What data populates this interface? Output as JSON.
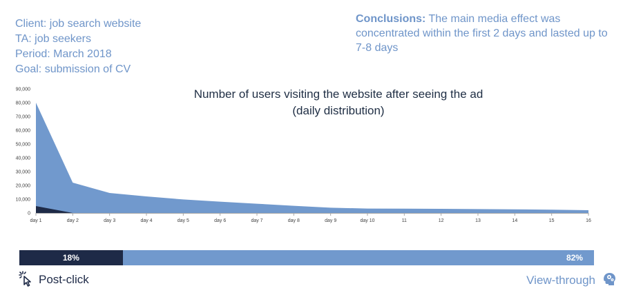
{
  "info": {
    "client": "Client: job search website",
    "ta": "TA: job seekers",
    "period": "Period: March 2018",
    "goal": "Goal: submission of CV"
  },
  "conclusions": {
    "label": "Conclusions:",
    "text": " The main media effect was concentrated within the first 2 days and lasted up to 7-8 days"
  },
  "colors": {
    "view_through": "#7199cd",
    "post_click": "#1e2a47",
    "text_blue": "#6f95c9"
  },
  "chart_data": {
    "type": "area",
    "title": "Number of users visiting the website after seeing the ad (daily distribution)",
    "title_lines": [
      "Number of users visiting the website after seeing the ad",
      "(daily distribution)"
    ],
    "categories": [
      "day 1",
      "day 2",
      "day 3",
      "day 4",
      "day 5",
      "day 6",
      "day 7",
      "day 8",
      "day 9",
      "day 10",
      "11",
      "12",
      "13",
      "14",
      "15",
      "16"
    ],
    "series": [
      {
        "values": [
          80000,
          22000,
          14500,
          12000,
          9800,
          8200,
          6700,
          5200,
          3800,
          3200,
          3100,
          3000,
          2800,
          2600,
          2400,
          2000
        ]
      },
      {
        "values": [
          5000,
          0,
          0,
          0,
          0,
          0,
          0,
          0,
          0,
          0,
          0,
          0,
          0,
          0,
          0,
          0
        ]
      }
    ],
    "ylim": [
      0,
      90000
    ],
    "yticks": [
      "0",
      "10,000",
      "20,000",
      "30,000",
      "40,000",
      "50,000",
      "60,000",
      "70,000",
      "80,000",
      "90,000"
    ],
    "grid": false
  },
  "shares": {
    "post_click": {
      "label": "18%",
      "value": 18
    },
    "view_through": {
      "label": "82%",
      "value": 82
    }
  },
  "legend": {
    "post_click": "Post-click",
    "view_through": "View-through"
  },
  "icons": {
    "post_click": "cursor-click-icon",
    "view_through": "head-gears-icon"
  }
}
